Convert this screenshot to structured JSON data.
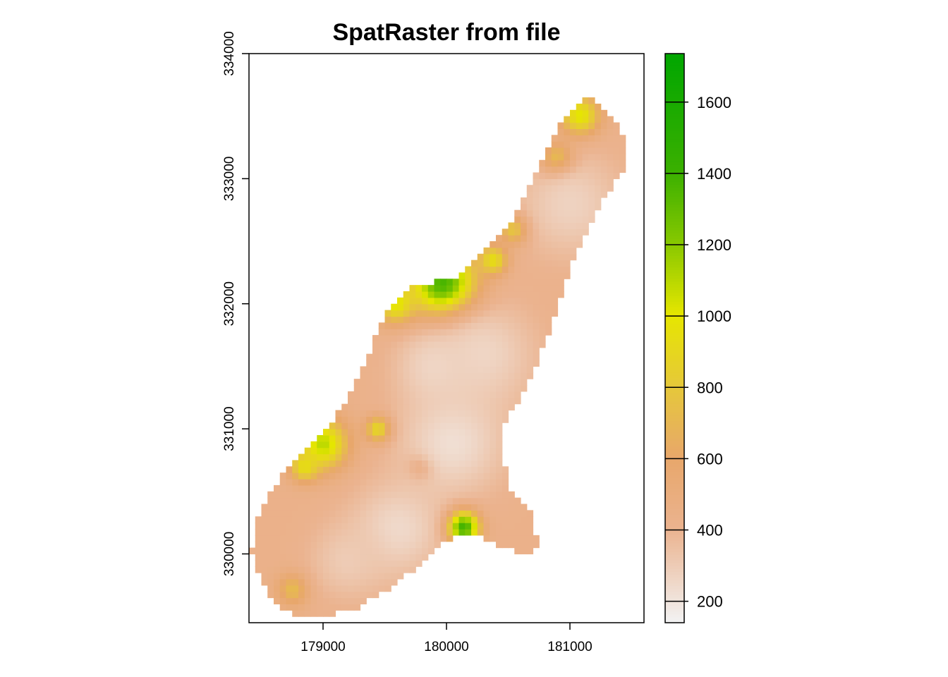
{
  "chart_data": {
    "type": "heatmap",
    "title": "SpatRaster from file",
    "xlabel": "",
    "ylabel": "",
    "xlim": [
      178400,
      181600
    ],
    "ylim": [
      329450,
      334000
    ],
    "x_ticks": [
      179000,
      180000,
      181000
    ],
    "x_tick_labels": [
      "179000",
      "180000",
      "181000"
    ],
    "y_ticks": [
      330000,
      331000,
      332000,
      333000,
      334000
    ],
    "y_tick_labels": [
      "330000",
      "331000",
      "332000",
      "333000",
      "334000"
    ],
    "legend": {
      "placement": "right",
      "range": [
        140,
        1736
      ],
      "ticks": [
        200,
        400,
        600,
        800,
        1000,
        1200,
        1400,
        1600
      ],
      "tick_labels": [
        "200",
        "400",
        "600",
        "800",
        "1000",
        "1200",
        "1400",
        "1600"
      ],
      "colors": [
        "#f2f2f2",
        "#ebb38f",
        "#e8a76b",
        "#e6c83a",
        "#e6e600",
        "#88c800",
        "#3bb000",
        "#00a600"
      ],
      "color_stops": [
        140,
        400,
        600,
        800,
        1000,
        1200,
        1400,
        1736
      ]
    },
    "mask_outline": [
      [
        178420,
        330030
      ],
      [
        178500,
        329780
      ],
      [
        178620,
        329600
      ],
      [
        178800,
        329510
      ],
      [
        179000,
        329500
      ],
      [
        179250,
        329550
      ],
      [
        179500,
        329700
      ],
      [
        179750,
        329880
      ],
      [
        179980,
        330100
      ],
      [
        180200,
        330160
      ],
      [
        180450,
        330060
      ],
      [
        180650,
        329970
      ],
      [
        180750,
        330050
      ],
      [
        180700,
        330300
      ],
      [
        180520,
        330520
      ],
      [
        180450,
        330780
      ],
      [
        180450,
        331000
      ],
      [
        180600,
        331250
      ],
      [
        180720,
        331500
      ],
      [
        180850,
        331800
      ],
      [
        180950,
        332150
      ],
      [
        181100,
        332500
      ],
      [
        181250,
        332800
      ],
      [
        181420,
        333050
      ],
      [
        181480,
        333250
      ],
      [
        181380,
        333450
      ],
      [
        181250,
        333580
      ],
      [
        181150,
        333650
      ],
      [
        181050,
        333580
      ],
      [
        180900,
        333400
      ],
      [
        180780,
        333150
      ],
      [
        180650,
        332900
      ],
      [
        180550,
        332700
      ],
      [
        180400,
        332500
      ],
      [
        180250,
        332350
      ],
      [
        180100,
        332230
      ],
      [
        179900,
        332180
      ],
      [
        179700,
        332130
      ],
      [
        179580,
        332020
      ],
      [
        179450,
        331800
      ],
      [
        179330,
        331500
      ],
      [
        179200,
        331250
      ],
      [
        179050,
        331000
      ],
      [
        178850,
        330850
      ],
      [
        178650,
        330600
      ],
      [
        178480,
        330350
      ]
    ],
    "background_value": 430,
    "hotspots": [
      {
        "x": 180130,
        "y": 330220,
        "value": 1650,
        "radius": 90
      },
      {
        "x": 179980,
        "y": 332140,
        "value": 1500,
        "radius": 180
      },
      {
        "x": 181080,
        "y": 333500,
        "value": 1050,
        "radius": 110
      },
      {
        "x": 180900,
        "y": 333150,
        "value": 1050,
        "radius": 90
      },
      {
        "x": 180380,
        "y": 332350,
        "value": 1000,
        "radius": 80
      },
      {
        "x": 180550,
        "y": 332600,
        "value": 950,
        "radius": 80
      },
      {
        "x": 179600,
        "y": 332000,
        "value": 1050,
        "radius": 110
      },
      {
        "x": 179000,
        "y": 330880,
        "value": 1100,
        "radius": 140
      },
      {
        "x": 178850,
        "y": 330700,
        "value": 950,
        "radius": 80
      },
      {
        "x": 179450,
        "y": 331000,
        "value": 1000,
        "radius": 70
      },
      {
        "x": 178760,
        "y": 329720,
        "value": 750,
        "radius": 90
      },
      {
        "x": 179800,
        "y": 330700,
        "value": 700,
        "radius": 70
      },
      {
        "x": 180050,
        "y": 330900,
        "value": 220,
        "radius": 300
      },
      {
        "x": 179600,
        "y": 330200,
        "value": 240,
        "radius": 260
      },
      {
        "x": 180300,
        "y": 331600,
        "value": 260,
        "radius": 300
      },
      {
        "x": 181000,
        "y": 332800,
        "value": 270,
        "radius": 300
      },
      {
        "x": 179200,
        "y": 329950,
        "value": 300,
        "radius": 220
      },
      {
        "x": 179900,
        "y": 331500,
        "value": 260,
        "radius": 220
      }
    ]
  }
}
